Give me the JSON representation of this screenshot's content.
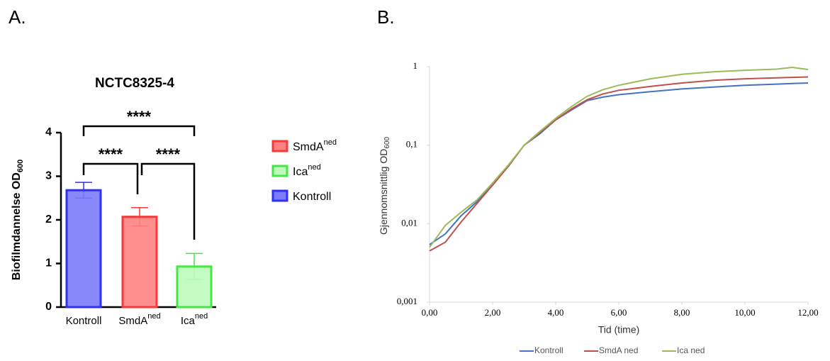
{
  "chart_data": [
    {
      "type": "bar",
      "panel_label": "A.",
      "title": "NCTC8325-4",
      "ylabel": "Biofilmdannelse OD",
      "ylabel_subscript": "600",
      "categories": [
        "Kontroll",
        "SmdA",
        "Ica"
      ],
      "category_superscripts": [
        null,
        "ned",
        "ned"
      ],
      "values": [
        2.68,
        2.07,
        0.93
      ],
      "errors": [
        0.18,
        0.21,
        0.3
      ],
      "colors": [
        "#7b7bfb",
        "#ff8282",
        "#bdfbbd"
      ],
      "edge_colors": [
        "#2f2ff5",
        "#f53a3a",
        "#47e647"
      ],
      "ylim": [
        0,
        4
      ],
      "yticks": [
        0,
        1,
        2,
        3,
        4
      ],
      "legend_order": [
        1,
        2,
        0
      ],
      "annotations": [
        {
          "text": "****",
          "pair": [
            0,
            2
          ]
        },
        {
          "text": "****",
          "pair": [
            0,
            1
          ]
        },
        {
          "text": "****",
          "pair": [
            1,
            2
          ]
        }
      ]
    },
    {
      "type": "line",
      "panel_label": "B.",
      "xlabel": "Tid (time)",
      "ylabel": "Gjennomsnittlig OD",
      "ylabel_subscript": "600",
      "log_y": true,
      "xlim": [
        0,
        12
      ],
      "ylim": [
        0.001,
        1
      ],
      "xticks": [
        {
          "value": 0,
          "label": "0,00"
        },
        {
          "value": 2,
          "label": "2,00"
        },
        {
          "value": 4,
          "label": "4,00"
        },
        {
          "value": 6,
          "label": "6,00"
        },
        {
          "value": 8,
          "label": "8,00"
        },
        {
          "value": 10,
          "label": "10,00"
        },
        {
          "value": 12,
          "label": "12,00"
        }
      ],
      "yticks": [
        {
          "value": 0.001,
          "label": "0,001"
        },
        {
          "value": 0.01,
          "label": "0,01"
        },
        {
          "value": 0.1,
          "label": "0,1"
        },
        1
      ],
      "x": [
        0,
        0.5,
        1,
        1.5,
        2,
        2.5,
        3,
        3.5,
        4,
        4.5,
        5,
        5.5,
        6,
        7,
        8,
        9,
        10,
        11,
        11.5,
        12
      ],
      "series": [
        {
          "name": "Kontroll",
          "color": "#4472c4",
          "values": [
            0.0054,
            0.0074,
            0.0126,
            0.019,
            0.031,
            0.054,
            0.1,
            0.14,
            0.21,
            0.28,
            0.37,
            0.41,
            0.44,
            0.48,
            0.52,
            0.55,
            0.58,
            0.6,
            0.61,
            0.62
          ]
        },
        {
          "name": "SmdA ned",
          "color": "#c0504d",
          "values": [
            0.0045,
            0.0058,
            0.0105,
            0.018,
            0.031,
            0.054,
            0.1,
            0.145,
            0.21,
            0.29,
            0.38,
            0.45,
            0.5,
            0.56,
            0.62,
            0.67,
            0.7,
            0.72,
            0.73,
            0.74
          ]
        },
        {
          "name": "Ica ned",
          "color": "#9bbb59",
          "values": [
            0.005,
            0.0095,
            0.014,
            0.02,
            0.033,
            0.056,
            0.1,
            0.15,
            0.22,
            0.31,
            0.42,
            0.51,
            0.58,
            0.7,
            0.8,
            0.86,
            0.9,
            0.93,
            0.98,
            0.92
          ]
        }
      ]
    }
  ]
}
